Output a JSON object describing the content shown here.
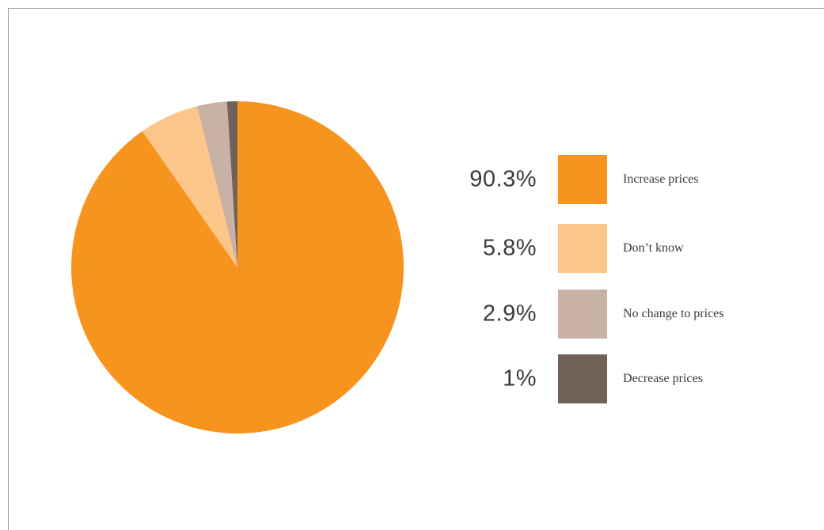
{
  "chart_data": {
    "type": "pie",
    "title": "",
    "slices": [
      {
        "label": "Increase prices",
        "value": 90.3,
        "value_label": "90.3%",
        "color": "#f7941e"
      },
      {
        "label": "Don’t know",
        "value": 5.8,
        "value_label": "5.8%",
        "color": "#fcc589"
      },
      {
        "label": "No change to prices",
        "value": 2.9,
        "value_label": "2.9%",
        "color": "#c8b2a6"
      },
      {
        "label": "Decrease prices",
        "value": 1,
        "value_label": "1%",
        "color": "#726159"
      }
    ],
    "legend_placement": "right"
  }
}
